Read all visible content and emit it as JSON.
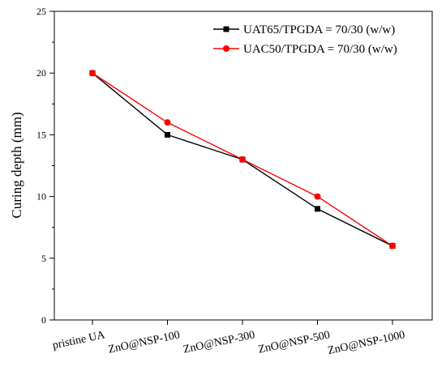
{
  "chart_data": {
    "type": "line",
    "title": "",
    "xlabel": "",
    "ylabel": "Curing depth (mm)",
    "categories": [
      "pristine UA",
      "ZnO@NSP-100",
      "ZnO@NSP-300",
      "ZnO@NSP-500",
      "ZnO@NSP-1000"
    ],
    "ylim": [
      0,
      25
    ],
    "yticks": [
      0,
      5,
      10,
      15,
      20,
      25
    ],
    "grid": false,
    "legend_position": "top-right",
    "series": [
      {
        "name": "UAT65/TPGDA = 70/30 (w/w)",
        "values": [
          20,
          15,
          13,
          9,
          6
        ],
        "color": "#000000",
        "marker": "square"
      },
      {
        "name": "UAC50/TPGDA = 70/30 (w/w)",
        "values": [
          20,
          16,
          13,
          10,
          6
        ],
        "color": "#ff0000",
        "marker": "circle"
      }
    ]
  }
}
